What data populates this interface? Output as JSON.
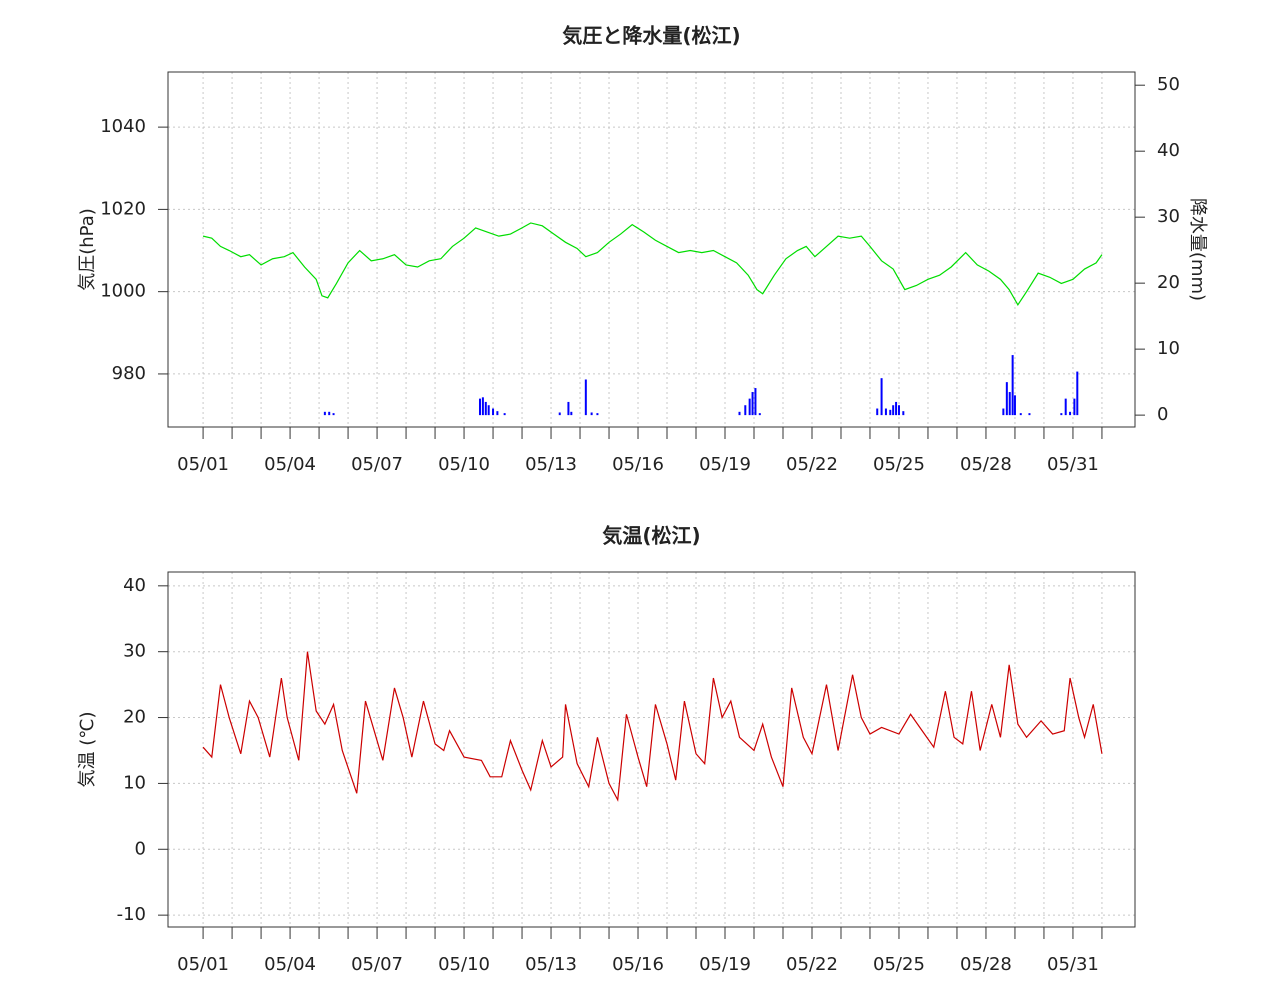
{
  "chart_data": [
    {
      "type": "line",
      "title": "気圧と降水量(松江)",
      "ylabel": "気圧(hPa)",
      "y2label": "降水量(mm)",
      "xlim": [
        -1.21,
        32.14
      ],
      "xticks": [
        {
          "value": 0,
          "label": "05/01"
        },
        {
          "value": 3,
          "label": "05/04"
        },
        {
          "value": 6,
          "label": "05/07"
        },
        {
          "value": 9,
          "label": "05/10"
        },
        {
          "value": 12,
          "label": "05/13"
        },
        {
          "value": 15,
          "label": "05/16"
        },
        {
          "value": 18,
          "label": "05/19"
        },
        {
          "value": 21,
          "label": "05/22"
        },
        {
          "value": 24,
          "label": "05/25"
        },
        {
          "value": 27,
          "label": "05/28"
        },
        {
          "value": 30,
          "label": "05/31"
        }
      ],
      "minor_xticks": [
        0,
        1,
        2,
        3,
        4,
        5,
        6,
        7,
        8,
        9,
        10,
        11,
        12,
        13,
        14,
        15,
        16,
        17,
        18,
        19,
        20,
        21,
        22,
        23,
        24,
        25,
        26,
        27,
        28,
        29,
        30,
        31
      ],
      "ylim": [
        967.1,
        1053.4
      ],
      "yticks": [
        980,
        1000,
        1020,
        1040
      ],
      "y2lim": [
        -1.8,
        52.0
      ],
      "y2ticks": [
        0,
        10,
        20,
        30,
        40,
        50
      ],
      "grid": true,
      "series": [
        {
          "type": "line",
          "axis": "y",
          "color": "#00dd00",
          "x": [
            0,
            0.3,
            0.6,
            0.9,
            1.3,
            1.6,
            2.0,
            2.4,
            2.8,
            3.1,
            3.5,
            3.9,
            4.1,
            4.3,
            4.6,
            5.0,
            5.4,
            5.8,
            6.2,
            6.6,
            7.0,
            7.4,
            7.8,
            8.2,
            8.6,
            9.0,
            9.4,
            9.8,
            10.2,
            10.6,
            11.0,
            11.3,
            11.7,
            12.1,
            12.5,
            12.9,
            13.2,
            13.6,
            14.0,
            14.4,
            14.8,
            15.2,
            15.6,
            16.0,
            16.4,
            16.8,
            17.2,
            17.6,
            18.0,
            18.4,
            18.8,
            19.1,
            19.3,
            19.7,
            20.1,
            20.5,
            20.8,
            21.1,
            21.5,
            21.9,
            22.3,
            22.7,
            23.0,
            23.4,
            23.8,
            24.2,
            24.6,
            25.0,
            25.4,
            25.8,
            26.3,
            26.7,
            27.1,
            27.5,
            27.8,
            28.1,
            28.4,
            28.8,
            29.2,
            29.6,
            30.0,
            30.4,
            30.8,
            31.0
          ],
          "values": [
            1013.5,
            1013,
            1011,
            1010,
            1008.5,
            1009,
            1006.5,
            1008,
            1008.5,
            1009.5,
            1006,
            1003,
            999,
            998.5,
            1002,
            1007,
            1010,
            1007.5,
            1008,
            1009,
            1006.5,
            1006,
            1007.5,
            1008,
            1011,
            1013,
            1015.5,
            1014.5,
            1013.5,
            1014,
            1015.5,
            1016.7,
            1016,
            1014,
            1012,
            1010.5,
            1008.5,
            1009.5,
            1012,
            1014,
            1016.3,
            1014.5,
            1012.5,
            1011,
            1009.5,
            1010,
            1009.5,
            1010,
            1008.5,
            1007,
            1004,
            1000.5,
            999.5,
            1004,
            1008,
            1010,
            1011,
            1008.5,
            1011,
            1013.5,
            1013,
            1013.5,
            1011,
            1007.5,
            1005.5,
            1000.5,
            1001.5,
            1003,
            1004,
            1006,
            1009.5,
            1006.5,
            1005,
            1003,
            1000.5,
            996.8,
            1000,
            1004.5,
            1003.5,
            1002,
            1003,
            1005.5,
            1007,
            1009
          ]
        },
        {
          "type": "bar",
          "axis": "y2",
          "color": "#0000ff",
          "x": [
            4.2,
            4.35,
            4.5,
            9.55,
            9.65,
            9.75,
            9.85,
            10.0,
            10.15,
            10.4,
            12.3,
            12.6,
            12.7,
            13.2,
            13.4,
            13.6,
            18.5,
            18.7,
            18.85,
            18.95,
            19.05,
            19.2,
            23.25,
            23.4,
            23.55,
            23.7,
            23.8,
            23.9,
            24.0,
            24.15,
            27.6,
            27.72,
            27.82,
            27.92,
            28.0,
            28.2,
            28.5,
            29.6,
            29.75,
            29.9,
            30.05,
            30.15
          ],
          "values": [
            0.5,
            0.5,
            0.3,
            2.5,
            2.7,
            2.0,
            1.5,
            1.0,
            0.6,
            0.3,
            0.4,
            2.0,
            0.5,
            5.4,
            0.4,
            0.3,
            0.5,
            1.5,
            2.5,
            3.5,
            4.1,
            0.3,
            1.0,
            5.6,
            1.0,
            0.8,
            1.5,
            2.0,
            1.5,
            0.6,
            1.0,
            5.0,
            3.5,
            9.1,
            3.0,
            0.3,
            0.3,
            0.3,
            2.5,
            0.5,
            2.5,
            6.6
          ]
        }
      ]
    },
    {
      "type": "line",
      "title": "気温(松江)",
      "ylabel": "気温 (℃)",
      "xlim": [
        -1.21,
        32.14
      ],
      "xticks": [
        {
          "value": 0,
          "label": "05/01"
        },
        {
          "value": 3,
          "label": "05/04"
        },
        {
          "value": 6,
          "label": "05/07"
        },
        {
          "value": 9,
          "label": "05/10"
        },
        {
          "value": 12,
          "label": "05/13"
        },
        {
          "value": 15,
          "label": "05/16"
        },
        {
          "value": 18,
          "label": "05/19"
        },
        {
          "value": 21,
          "label": "05/22"
        },
        {
          "value": 24,
          "label": "05/25"
        },
        {
          "value": 27,
          "label": "05/28"
        },
        {
          "value": 30,
          "label": "05/31"
        }
      ],
      "minor_xticks": [
        0,
        1,
        2,
        3,
        4,
        5,
        6,
        7,
        8,
        9,
        10,
        11,
        12,
        13,
        14,
        15,
        16,
        17,
        18,
        19,
        20,
        21,
        22,
        23,
        24,
        25,
        26,
        27,
        28,
        29,
        30,
        31
      ],
      "ylim": [
        -11.8,
        42.1
      ],
      "yticks": [
        -10,
        0,
        10,
        20,
        30,
        40
      ],
      "grid": true,
      "series": [
        {
          "type": "line",
          "axis": "y",
          "color": "#cc0000",
          "x": [
            0,
            0.3,
            0.6,
            0.9,
            1.3,
            1.6,
            1.9,
            2.3,
            2.7,
            2.9,
            3.3,
            3.6,
            3.9,
            4.2,
            4.5,
            4.8,
            5.3,
            5.6,
            5.9,
            6.2,
            6.6,
            6.9,
            7.2,
            7.6,
            8.0,
            8.3,
            8.5,
            9.0,
            9.6,
            9.9,
            10.3,
            10.6,
            11.0,
            11.3,
            11.7,
            12.0,
            12.4,
            12.5,
            12.9,
            13.3,
            13.6,
            14.0,
            14.3,
            14.6,
            15.0,
            15.3,
            15.6,
            16.0,
            16.3,
            16.6,
            17.0,
            17.3,
            17.6,
            17.9,
            18.2,
            18.5,
            19.0,
            19.3,
            19.6,
            20.0,
            20.3,
            20.7,
            21.0,
            21.5,
            21.9,
            22.4,
            22.7,
            23.0,
            23.4,
            24.0,
            24.4,
            24.8,
            25.2,
            25.6,
            25.9,
            26.2,
            26.5,
            26.8,
            27.2,
            27.5,
            27.8,
            28.1,
            28.4,
            28.9,
            29.3,
            29.7,
            29.9,
            30.2,
            30.4,
            30.7,
            31.0
          ],
          "values": [
            15.5,
            14,
            25,
            20,
            14.5,
            22.5,
            20,
            14,
            26,
            20,
            13.5,
            30,
            21,
            19,
            22,
            15,
            8.5,
            22.5,
            18,
            13.5,
            24.5,
            20,
            14,
            22.5,
            16,
            15,
            18,
            14,
            13.5,
            11,
            11,
            16.5,
            12,
            9,
            16.5,
            12.5,
            14,
            22,
            13,
            9.5,
            17,
            10,
            7.5,
            20.5,
            14,
            9.5,
            22,
            16,
            10.5,
            22.5,
            14.5,
            13,
            26,
            20,
            22.5,
            17,
            15,
            19,
            14,
            9.5,
            24.5,
            17,
            14.5,
            25,
            15,
            26.5,
            20,
            17.5,
            18.5,
            17.5,
            20.5,
            18,
            15.5,
            24,
            17,
            16,
            24,
            15,
            22,
            17,
            28,
            19,
            17,
            19.5,
            17.5,
            18,
            26,
            20,
            17,
            22,
            14.5
          ]
        }
      ]
    }
  ]
}
